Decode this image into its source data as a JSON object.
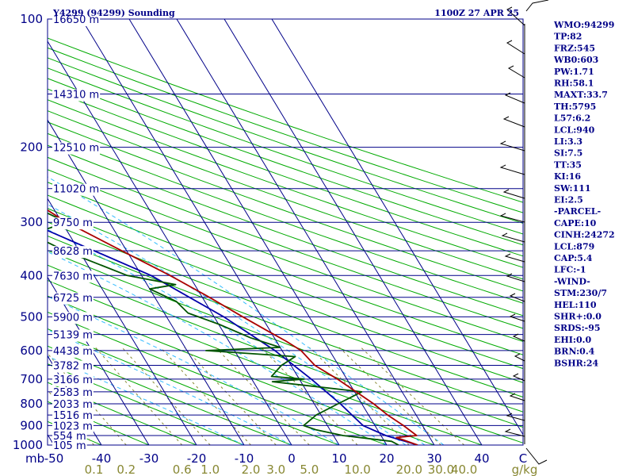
{
  "header": {
    "left_title": "Y4299 (94299) Sounding",
    "right_title": "1100Z 27 APR 25"
  },
  "stats": [
    "WMO:94299",
    "TP:82",
    "FRZ:545",
    "WB0:603",
    "PW:1.71",
    "RH:58.1",
    "MAXT:33.7",
    "TH:5795",
    "L57:6.2",
    "LCL:940",
    "LI:3.3",
    "SI:7.5",
    "TT:35",
    "KI:16",
    "SW:111",
    "EI:2.5",
    "-PARCEL-",
    "CAPE:10",
    "CINH:24272",
    "LCL:879",
    "CAP:5.4",
    "LFC:-1",
    "-WIND-",
    "STM:230/7",
    "HEL:110",
    "SHR+:0.0",
    "SRDS:-95",
    "EHI:0.0",
    "BRN:0.4",
    "BSHR:24"
  ],
  "colors": {
    "isobar": "#000088",
    "isotherm": "#000088",
    "dry_adiabat": "#00aa00",
    "moist_adiabat": "#33bbff",
    "mixing_ratio": "#888833",
    "temperature": "#aa0000",
    "dewpoint": "#005500",
    "parcel": "#0000aa"
  },
  "chart_data": {
    "type": "line",
    "title": "Y4299 (94299) Sounding",
    "subtitle": "1100Z 27 APR 25",
    "xlabel": "C",
    "ylabel": "mb",
    "ylim": [
      1000,
      100
    ],
    "pressure_ticks": [
      100,
      200,
      300,
      400,
      500,
      600,
      700,
      800,
      900,
      1000
    ],
    "temperature_ticks": [
      -50,
      -40,
      -30,
      -20,
      -10,
      0,
      10,
      20,
      30,
      40
    ],
    "mixing_ratio_ticks": [
      "0.1",
      "0.2",
      "0.6",
      "1.0",
      "2.0",
      "3.0",
      "5.0",
      "10.0",
      "20.0",
      "30.0",
      "40.0"
    ],
    "mixing_ratio_unit": "g/kg",
    "height_labels": [
      {
        "p": 100,
        "label": "16650 m"
      },
      {
        "p": 150,
        "label": "14310 m"
      },
      {
        "p": 200,
        "label": "12510 m"
      },
      {
        "p": 250,
        "label": "11020 m"
      },
      {
        "p": 300,
        "label": "9750 m"
      },
      {
        "p": 350,
        "label": "8628 m"
      },
      {
        "p": 400,
        "label": "7630 m"
      },
      {
        "p": 450,
        "label": "6725 m"
      },
      {
        "p": 500,
        "label": "5900 m"
      },
      {
        "p": 550,
        "label": "5139 m"
      },
      {
        "p": 600,
        "label": "4438 m"
      },
      {
        "p": 650,
        "label": "3782 m"
      },
      {
        "p": 700,
        "label": "3166 m"
      },
      {
        "p": 750,
        "label": "2583 m"
      },
      {
        "p": 800,
        "label": "2033 m"
      },
      {
        "p": 850,
        "label": "1516 m"
      },
      {
        "p": 900,
        "label": "1023 m"
      },
      {
        "p": 950,
        "label": "554 m"
      },
      {
        "p": 1000,
        "label": "105 m"
      }
    ],
    "series": [
      {
        "key": "temperature",
        "points": [
          [
            1000,
            26.5
          ],
          [
            960,
            23.0
          ],
          [
            950,
            27.5
          ],
          [
            900,
            26.0
          ],
          [
            850,
            24.0
          ],
          [
            800,
            22.5
          ],
          [
            700,
            18.0
          ],
          [
            650,
            15.0
          ],
          [
            600,
            14.0
          ],
          [
            570,
            12.0
          ],
          [
            540,
            9.5
          ],
          [
            500,
            6.0
          ],
          [
            450,
            1.5
          ],
          [
            400,
            -4.0
          ],
          [
            350,
            -11.0
          ],
          [
            300,
            -19.0
          ],
          [
            270,
            -23.0
          ],
          [
            240,
            -27.5
          ],
          [
            220,
            -31.0
          ],
          [
            200,
            -35.5
          ],
          [
            150,
            -44.0
          ],
          [
            120,
            -52.0
          ],
          [
            105,
            -55.0
          ],
          [
            100,
            -56.0
          ]
        ]
      },
      {
        "key": "dewpoint",
        "points": [
          [
            1000,
            22.5
          ],
          [
            980,
            21.5
          ],
          [
            950,
            12.0
          ],
          [
            920,
            7.0
          ],
          [
            900,
            5.0
          ],
          [
            850,
            9.0
          ],
          [
            800,
            15.0
          ],
          [
            750,
            21.5
          ],
          [
            710,
            4.0
          ],
          [
            700,
            11.0
          ],
          [
            690,
            4.5
          ],
          [
            650,
            8.0
          ],
          [
            620,
            12.0
          ],
          [
            600,
            -6.0
          ],
          [
            590,
            10.0
          ],
          [
            560,
            5.0
          ],
          [
            520,
            0.0
          ],
          [
            490,
            -5.0
          ],
          [
            460,
            -6.0
          ],
          [
            430,
            -10.0
          ],
          [
            420,
            -4.0
          ],
          [
            400,
            -13.0
          ],
          [
            350,
            -23.0
          ],
          [
            320,
            -28.0
          ],
          [
            300,
            -19.0
          ],
          [
            280,
            -23.0
          ],
          [
            250,
            -30.0
          ],
          [
            220,
            -38.5
          ],
          [
            200,
            -39.0
          ],
          [
            175,
            -37.5
          ],
          [
            150,
            -46.0
          ],
          [
            130,
            -50.0
          ],
          [
            115,
            -55.0
          ],
          [
            100,
            -60.0
          ]
        ]
      },
      {
        "key": "parcel",
        "points": [
          [
            1000,
            26.5
          ],
          [
            950,
            21.0
          ],
          [
            900,
            17.5
          ],
          [
            850,
            16.5
          ],
          [
            800,
            15.5
          ],
          [
            700,
            12.5
          ],
          [
            600,
            8.5
          ],
          [
            500,
            2.0
          ],
          [
            400,
            -8.0
          ],
          [
            300,
            -27.0
          ],
          [
            250,
            -39.0
          ],
          [
            200,
            -50.0
          ],
          [
            150,
            -64.0
          ],
          [
            120,
            -72.0
          ],
          [
            100,
            -76.0
          ]
        ]
      }
    ]
  }
}
